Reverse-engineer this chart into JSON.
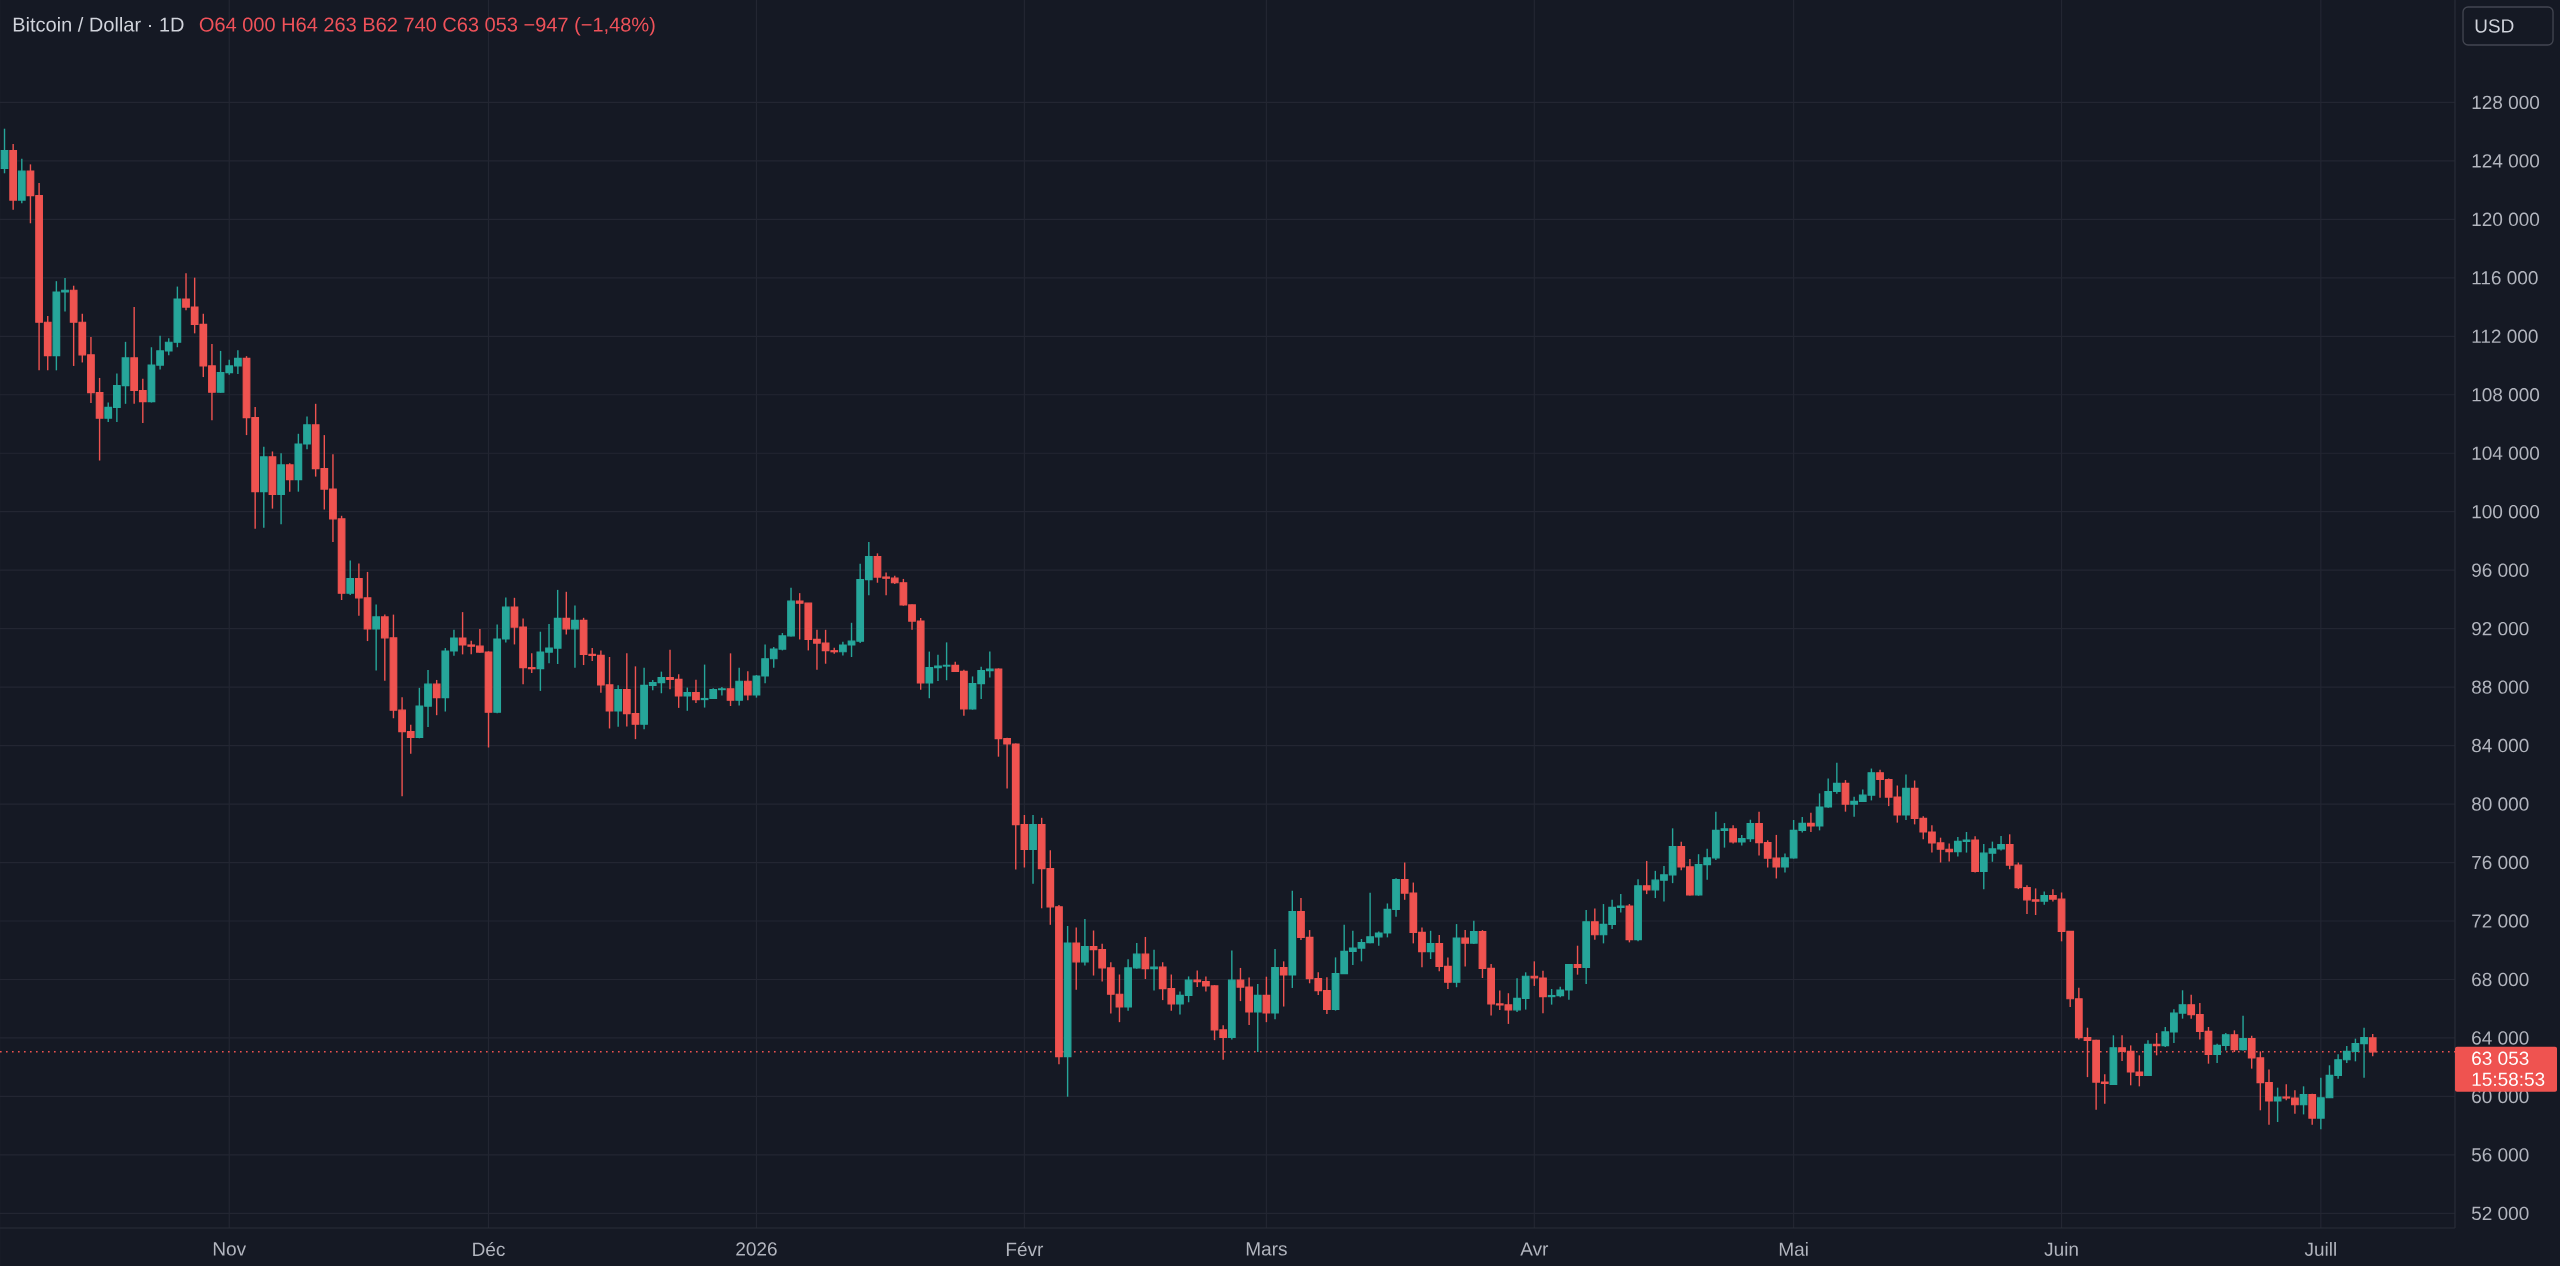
{
  "chart_data": {
    "type": "candlestick",
    "title": "Bitcoin / Dollar · 1D",
    "subtitle": "O64 000 H64 263 B62 740 C63 053 −947 (−1,48%)",
    "annotations": [
      "USD",
      "15:58:53"
    ],
    "x": [
      "2025-10-06",
      "2025-10-07",
      "2025-10-08",
      "2025-10-09",
      "2025-10-10",
      "2025-10-11",
      "2025-10-12",
      "2025-10-13",
      "2025-10-14",
      "2025-10-15",
      "2025-10-16",
      "2025-10-17",
      "2025-10-18",
      "2025-10-19",
      "2025-10-20",
      "2025-10-21",
      "2025-10-22",
      "2025-10-23",
      "2025-10-24",
      "2025-10-25",
      "2025-10-26",
      "2025-10-27",
      "2025-10-28",
      "2025-10-29",
      "2025-10-30",
      "2025-10-31",
      "2025-11-01",
      "2025-11-02",
      "2025-11-03",
      "2025-11-04",
      "2025-11-05",
      "2025-11-06",
      "2025-11-07",
      "2025-11-08",
      "2025-11-09",
      "2025-11-10",
      "2025-11-11",
      "2025-11-12",
      "2025-11-13",
      "2025-11-14",
      "2025-11-15",
      "2025-11-16",
      "2025-11-17",
      "2025-11-18",
      "2025-11-19",
      "2025-11-20",
      "2025-11-21",
      "2025-11-22",
      "2025-11-23",
      "2025-11-24",
      "2025-11-25",
      "2025-11-26",
      "2025-11-27",
      "2025-11-28",
      "2025-11-29",
      "2025-11-30",
      "2025-12-01",
      "2025-12-02",
      "2025-12-03",
      "2025-12-04",
      "2025-12-05",
      "2025-12-06",
      "2025-12-07",
      "2025-12-08",
      "2025-12-09",
      "2025-12-10",
      "2025-12-11",
      "2025-12-12",
      "2025-12-13",
      "2025-12-14",
      "2025-12-15",
      "2025-12-16",
      "2025-12-17",
      "2025-12-18",
      "2025-12-19",
      "2025-12-20",
      "2025-12-21",
      "2025-12-22",
      "2025-12-23",
      "2025-12-24",
      "2025-12-25",
      "2025-12-26",
      "2025-12-27",
      "2025-12-28",
      "2025-12-29",
      "2025-12-30",
      "2025-12-31",
      "2026-01-01",
      "2026-01-02",
      "2026-01-03",
      "2026-01-04",
      "2026-01-05",
      "2026-01-06",
      "2026-01-07",
      "2026-01-08",
      "2026-01-09",
      "2026-01-10",
      "2026-01-11",
      "2026-01-12",
      "2026-01-13",
      "2026-01-14",
      "2026-01-15",
      "2026-01-16",
      "2026-01-17",
      "2026-01-18",
      "2026-01-19",
      "2026-01-20",
      "2026-01-21",
      "2026-01-22",
      "2026-01-23",
      "2026-01-24",
      "2026-01-25",
      "2026-01-26",
      "2026-01-27",
      "2026-01-28",
      "2026-01-29",
      "2026-01-30",
      "2026-01-31",
      "2026-02-01",
      "2026-02-02",
      "2026-02-03",
      "2026-02-04",
      "2026-02-05",
      "2026-02-06",
      "2026-02-07",
      "2026-02-08",
      "2026-02-09",
      "2026-02-10",
      "2026-02-11",
      "2026-02-12",
      "2026-02-13",
      "2026-02-14",
      "2026-02-15",
      "2026-02-16",
      "2026-02-17",
      "2026-02-18",
      "2026-02-19",
      "2026-02-20",
      "2026-02-21",
      "2026-02-22",
      "2026-02-23",
      "2026-02-24",
      "2026-02-25",
      "2026-02-26",
      "2026-02-27",
      "2026-02-28",
      "2026-03-01",
      "2026-03-02",
      "2026-03-03",
      "2026-03-04",
      "2026-03-05",
      "2026-03-06",
      "2026-03-07",
      "2026-03-08",
      "2026-03-09",
      "2026-03-10",
      "2026-03-11",
      "2026-03-12",
      "2026-03-13",
      "2026-03-14",
      "2026-03-15",
      "2026-03-16",
      "2026-03-17",
      "2026-03-18",
      "2026-03-19",
      "2026-03-20",
      "2026-03-21",
      "2026-03-22",
      "2026-03-23",
      "2026-03-24",
      "2026-03-25",
      "2026-03-26",
      "2026-03-27",
      "2026-03-28",
      "2026-03-29",
      "2026-03-30",
      "2026-03-31",
      "2026-04-01",
      "2026-04-02",
      "2026-04-03",
      "2026-04-04",
      "2026-04-05",
      "2026-04-06",
      "2026-04-07",
      "2026-04-08",
      "2026-04-09",
      "2026-04-10",
      "2026-04-11",
      "2026-04-12",
      "2026-04-13",
      "2026-04-14",
      "2026-04-15",
      "2026-04-16",
      "2026-04-17",
      "2026-04-18",
      "2026-04-19",
      "2026-04-20",
      "2026-04-21",
      "2026-04-22",
      "2026-04-23",
      "2026-04-24",
      "2026-04-25",
      "2026-04-26",
      "2026-04-27",
      "2026-04-28",
      "2026-04-29",
      "2026-04-30",
      "2026-05-01",
      "2026-05-02",
      "2026-05-03",
      "2026-05-04",
      "2026-05-05",
      "2026-05-06",
      "2026-05-07",
      "2026-05-08",
      "2026-05-09",
      "2026-05-10",
      "2026-05-11",
      "2026-05-12",
      "2026-05-13",
      "2026-05-14",
      "2026-05-15",
      "2026-05-16",
      "2026-05-17",
      "2026-05-18",
      "2026-05-19",
      "2026-05-20",
      "2026-05-21",
      "2026-05-22",
      "2026-05-23",
      "2026-05-24",
      "2026-05-25",
      "2026-05-26",
      "2026-05-27",
      "2026-05-28",
      "2026-05-29",
      "2026-05-30",
      "2026-05-31",
      "2026-06-01",
      "2026-06-02",
      "2026-06-03",
      "2026-06-04",
      "2026-06-05",
      "2026-06-06",
      "2026-06-07",
      "2026-06-08",
      "2026-06-09",
      "2026-06-10",
      "2026-06-11",
      "2026-06-12",
      "2026-06-13",
      "2026-06-14",
      "2026-06-15",
      "2026-06-16",
      "2026-06-17",
      "2026-06-18",
      "2026-06-19",
      "2026-06-20",
      "2026-06-21",
      "2026-06-22",
      "2026-06-23",
      "2026-06-24",
      "2026-06-25",
      "2026-06-26",
      "2026-06-27",
      "2026-06-28",
      "2026-06-29",
      "2026-06-30",
      "2026-07-01",
      "2026-07-02",
      "2026-07-03",
      "2026-07-04",
      "2026-07-05",
      "2026-07-06",
      "2026-07-07"
    ],
    "ohlc": [
      [
        123480,
        126200,
        123150,
        124700
      ],
      [
        124700,
        125160,
        120650,
        121320
      ],
      [
        121320,
        124150,
        121100,
        123300
      ],
      [
        123300,
        123760,
        119730,
        121620
      ],
      [
        121620,
        122480,
        109670,
        112960
      ],
      [
        112960,
        113390,
        109670,
        110670
      ],
      [
        110670,
        115770,
        109670,
        115030
      ],
      [
        115030,
        115980,
        113690,
        115150
      ],
      [
        115150,
        115460,
        109970,
        112960
      ],
      [
        112960,
        113540,
        110210,
        110730
      ],
      [
        110730,
        111950,
        107440,
        108140
      ],
      [
        108140,
        109150,
        103500,
        106400
      ],
      [
        106400,
        107470,
        106130,
        107130
      ],
      [
        107130,
        109450,
        106130,
        108630
      ],
      [
        108630,
        111620,
        107380,
        110520
      ],
      [
        110520,
        114000,
        107380,
        108290
      ],
      [
        108290,
        109090,
        106070,
        107530
      ],
      [
        107530,
        111250,
        107470,
        110030
      ],
      [
        110030,
        112040,
        109730,
        111000
      ],
      [
        111000,
        111860,
        110700,
        111590
      ],
      [
        111590,
        115400,
        111250,
        114550
      ],
      [
        114550,
        116320,
        113780,
        114000
      ],
      [
        114000,
        116010,
        112200,
        112810
      ],
      [
        112810,
        113540,
        109210,
        109970
      ],
      [
        109970,
        111470,
        106250,
        108170
      ],
      [
        108170,
        111000,
        108140,
        109510
      ],
      [
        109510,
        110400,
        109360,
        109970
      ],
      [
        109970,
        111040,
        109420,
        110490
      ],
      [
        110490,
        110640,
        105240,
        106430
      ],
      [
        106430,
        107160,
        98830,
        101370
      ],
      [
        101370,
        104450,
        98900,
        103750
      ],
      [
        103750,
        104120,
        100210,
        101190
      ],
      [
        101190,
        103990,
        99140,
        103200
      ],
      [
        103200,
        103320,
        101370,
        102190
      ],
      [
        102190,
        105330,
        101370,
        104630
      ],
      [
        104630,
        106520,
        104270,
        105940
      ],
      [
        105940,
        107380,
        102400,
        102950
      ],
      [
        102950,
        105240,
        100150,
        101550
      ],
      [
        101550,
        103930,
        97920,
        99510
      ],
      [
        99510,
        99720,
        93960,
        94420
      ],
      [
        94420,
        96670,
        94300,
        95420
      ],
      [
        95420,
        96460,
        92890,
        94110
      ],
      [
        94110,
        95880,
        91150,
        91980
      ],
      [
        91980,
        93650,
        89140,
        92800
      ],
      [
        92800,
        92960,
        88440,
        91370
      ],
      [
        91370,
        92960,
        85870,
        86420
      ],
      [
        86420,
        87300,
        80540,
        84960
      ],
      [
        84960,
        85420,
        83440,
        84560
      ],
      [
        84560,
        87950,
        84500,
        86700
      ],
      [
        86700,
        89170,
        85270,
        88200
      ],
      [
        88200,
        88490,
        86080,
        87280
      ],
      [
        87280,
        90670,
        86330,
        90470
      ],
      [
        90470,
        91920,
        90150,
        91360
      ],
      [
        91360,
        93130,
        90240,
        90880
      ],
      [
        90880,
        91170,
        90240,
        90800
      ],
      [
        90800,
        91970,
        90350,
        90400
      ],
      [
        90400,
        90450,
        83870,
        86280
      ],
      [
        86280,
        92290,
        86210,
        91290
      ],
      [
        91290,
        94130,
        91060,
        93470
      ],
      [
        93470,
        94110,
        90920,
        92110
      ],
      [
        92110,
        92700,
        88190,
        89330
      ],
      [
        89330,
        90310,
        88970,
        89260
      ],
      [
        89260,
        91790,
        87740,
        90400
      ],
      [
        90400,
        92310,
        89630,
        90670
      ],
      [
        90670,
        94650,
        89580,
        92700
      ],
      [
        92700,
        94520,
        91600,
        91990
      ],
      [
        91990,
        93580,
        89330,
        92560
      ],
      [
        92560,
        92740,
        89510,
        90240
      ],
      [
        90240,
        90670,
        89790,
        90170
      ],
      [
        90170,
        90510,
        87620,
        88150
      ],
      [
        88150,
        90060,
        85170,
        86370
      ],
      [
        86370,
        88120,
        85290,
        87830
      ],
      [
        87830,
        90310,
        85300,
        86190
      ],
      [
        86190,
        89420,
        84440,
        85460
      ],
      [
        85460,
        89330,
        85120,
        88120
      ],
      [
        88120,
        88490,
        87780,
        88310
      ],
      [
        88310,
        89060,
        87580,
        88650
      ],
      [
        88650,
        90560,
        87850,
        88530
      ],
      [
        88530,
        88880,
        86580,
        87400
      ],
      [
        87400,
        87970,
        86380,
        87620
      ],
      [
        87620,
        88510,
        86920,
        87150
      ],
      [
        87150,
        89540,
        86600,
        87220
      ],
      [
        87220,
        87920,
        87210,
        87830
      ],
      [
        87830,
        88010,
        87420,
        87880
      ],
      [
        87880,
        90310,
        86710,
        87100
      ],
      [
        87100,
        89330,
        86740,
        88400
      ],
      [
        88400,
        89080,
        87100,
        87470
      ],
      [
        87470,
        88830,
        87280,
        88760
      ],
      [
        88760,
        90920,
        88260,
        89940
      ],
      [
        89940,
        90740,
        89330,
        90600
      ],
      [
        90600,
        91700,
        90510,
        91510
      ],
      [
        91510,
        94790,
        91470,
        93880
      ],
      [
        93880,
        94430,
        91260,
        93740
      ],
      [
        93740,
        93750,
        90510,
        91260
      ],
      [
        91260,
        91920,
        89190,
        91010
      ],
      [
        91010,
        91920,
        89600,
        90490
      ],
      [
        90490,
        90700,
        90290,
        90420
      ],
      [
        90420,
        91110,
        90170,
        90880
      ],
      [
        90880,
        92400,
        90060,
        91140
      ],
      [
        91140,
        96440,
        91010,
        95350
      ],
      [
        95350,
        97930,
        94280,
        96920
      ],
      [
        96920,
        97150,
        95140,
        95530
      ],
      [
        95530,
        95840,
        94280,
        95450
      ],
      [
        95450,
        95610,
        95060,
        95140
      ],
      [
        95140,
        95400,
        93570,
        93620
      ],
      [
        93620,
        93650,
        91920,
        92520
      ],
      [
        92520,
        92730,
        87820,
        88290
      ],
      [
        88290,
        90430,
        87240,
        89330
      ],
      [
        89330,
        90220,
        88420,
        89440
      ],
      [
        89440,
        91060,
        88470,
        89490
      ],
      [
        89490,
        89730,
        89050,
        89070
      ],
      [
        89070,
        89180,
        86040,
        86510
      ],
      [
        86510,
        88730,
        86460,
        88240
      ],
      [
        88240,
        89390,
        87190,
        89130
      ],
      [
        89130,
        90430,
        88660,
        89230
      ],
      [
        89230,
        89280,
        83240,
        84470
      ],
      [
        84470,
        84530,
        81070,
        84110
      ],
      [
        84110,
        84150,
        75530,
        78590
      ],
      [
        78590,
        79250,
        75660,
        76890
      ],
      [
        76890,
        79250,
        74540,
        78590
      ],
      [
        78590,
        79060,
        72870,
        75590
      ],
      [
        75590,
        76840,
        71740,
        72970
      ],
      [
        72970,
        73100,
        62200,
        62720
      ],
      [
        62720,
        71660,
        59980,
        70490
      ],
      [
        70490,
        71560,
        67300,
        69210
      ],
      [
        69210,
        72130,
        68950,
        70250
      ],
      [
        70250,
        71350,
        68270,
        70040
      ],
      [
        70040,
        70440,
        67870,
        68790
      ],
      [
        68790,
        69180,
        65680,
        66990
      ],
      [
        66990,
        68340,
        65080,
        66120
      ],
      [
        66120,
        69390,
        65860,
        68790
      ],
      [
        68790,
        70490,
        68740,
        69730
      ],
      [
        69730,
        70910,
        68030,
        68740
      ],
      [
        68740,
        70040,
        67250,
        68840
      ],
      [
        68840,
        69180,
        66590,
        67380
      ],
      [
        67380,
        68340,
        65860,
        66330
      ],
      [
        66330,
        67170,
        65600,
        66910
      ],
      [
        66910,
        68210,
        66440,
        67950
      ],
      [
        67950,
        68610,
        67480,
        67850
      ],
      [
        67850,
        68210,
        67170,
        67560
      ],
      [
        67560,
        67610,
        63850,
        64550
      ],
      [
        64550,
        64870,
        62510,
        64030
      ],
      [
        64030,
        69990,
        63900,
        67950
      ],
      [
        67950,
        68790,
        66520,
        67480
      ],
      [
        67480,
        68140,
        64890,
        65780
      ],
      [
        65780,
        67690,
        63040,
        66910
      ],
      [
        66910,
        68190,
        65080,
        65710
      ],
      [
        65710,
        70080,
        65280,
        68810
      ],
      [
        68810,
        69240,
        66150,
        68310
      ],
      [
        68310,
        74070,
        67420,
        72650
      ],
      [
        72650,
        73570,
        70700,
        70880
      ],
      [
        70880,
        71380,
        67740,
        68060
      ],
      [
        68060,
        68490,
        66940,
        67240
      ],
      [
        67240,
        68150,
        65640,
        65960
      ],
      [
        65960,
        69510,
        65870,
        68400
      ],
      [
        68400,
        71740,
        68400,
        69920
      ],
      [
        69920,
        71330,
        68990,
        70150
      ],
      [
        70150,
        70770,
        69240,
        70520
      ],
      [
        70520,
        73930,
        70470,
        70920
      ],
      [
        70920,
        71290,
        70310,
        71180
      ],
      [
        71180,
        73200,
        70880,
        72790
      ],
      [
        72790,
        74930,
        72290,
        74840
      ],
      [
        74840,
        76000,
        73450,
        73910
      ],
      [
        73910,
        74630,
        70470,
        71220
      ],
      [
        71220,
        71560,
        68830,
        69900
      ],
      [
        69900,
        71330,
        69400,
        70450
      ],
      [
        70450,
        71040,
        68560,
        68900
      ],
      [
        68900,
        69510,
        67350,
        67810
      ],
      [
        67810,
        71790,
        67470,
        70830
      ],
      [
        70830,
        71380,
        68880,
        70490
      ],
      [
        70490,
        72020,
        70420,
        71270
      ],
      [
        71270,
        71380,
        68100,
        68760
      ],
      [
        68760,
        69060,
        65530,
        66330
      ],
      [
        66330,
        67240,
        65920,
        66260
      ],
      [
        66260,
        67060,
        64960,
        65920
      ],
      [
        65920,
        68080,
        65780,
        66710
      ],
      [
        66710,
        68490,
        65940,
        68220
      ],
      [
        68220,
        69240,
        67560,
        68100
      ],
      [
        68100,
        68600,
        65690,
        66830
      ],
      [
        66830,
        67350,
        66280,
        66900
      ],
      [
        66900,
        67510,
        66780,
        67280
      ],
      [
        67280,
        69060,
        66620,
        69010
      ],
      [
        69010,
        70310,
        68330,
        68830
      ],
      [
        68830,
        72750,
        67690,
        71950
      ],
      [
        71950,
        72860,
        70720,
        71060
      ],
      [
        71060,
        73160,
        70470,
        71770
      ],
      [
        71770,
        73450,
        71450,
        72930
      ],
      [
        72930,
        73840,
        72590,
        73020
      ],
      [
        73020,
        73160,
        70540,
        70720
      ],
      [
        70720,
        74860,
        70610,
        74410
      ],
      [
        74410,
        76110,
        73840,
        74130
      ],
      [
        74130,
        75430,
        73570,
        74790
      ],
      [
        74790,
        75770,
        73340,
        75160
      ],
      [
        75160,
        78340,
        74590,
        77090
      ],
      [
        77090,
        77430,
        75480,
        75700
      ],
      [
        75700,
        76250,
        73750,
        73790
      ],
      [
        73790,
        76570,
        73730,
        75860
      ],
      [
        75860,
        76950,
        74820,
        76320
      ],
      [
        76320,
        79480,
        76180,
        78200
      ],
      [
        78200,
        78700,
        77020,
        78300
      ],
      [
        78300,
        78550,
        77300,
        77410
      ],
      [
        77410,
        77890,
        77160,
        77640
      ],
      [
        77640,
        78930,
        77410,
        78660
      ],
      [
        78660,
        79480,
        76480,
        77360
      ],
      [
        77360,
        77520,
        75660,
        76300
      ],
      [
        76300,
        77890,
        74910,
        75700
      ],
      [
        75700,
        76610,
        75320,
        76320
      ],
      [
        76320,
        78910,
        76270,
        78200
      ],
      [
        78200,
        79110,
        78050,
        78680
      ],
      [
        78680,
        79410,
        78090,
        78500
      ],
      [
        78500,
        80730,
        78200,
        79800
      ],
      [
        79800,
        81750,
        79750,
        80860
      ],
      [
        80860,
        82820,
        80700,
        81410
      ],
      [
        81410,
        81640,
        79480,
        80000
      ],
      [
        80000,
        80500,
        79140,
        80180
      ],
      [
        80180,
        81000,
        80140,
        80610
      ],
      [
        80610,
        82430,
        80250,
        82140
      ],
      [
        82140,
        82340,
        80430,
        81680
      ],
      [
        81680,
        81750,
        79860,
        80480
      ],
      [
        80480,
        81270,
        78730,
        79250
      ],
      [
        79250,
        82020,
        78910,
        81070
      ],
      [
        81070,
        81610,
        78610,
        79020
      ],
      [
        79020,
        79160,
        77590,
        78090
      ],
      [
        78090,
        78550,
        76680,
        77340
      ],
      [
        77340,
        77700,
        76000,
        76910
      ],
      [
        76910,
        77300,
        76070,
        76750
      ],
      [
        76750,
        77750,
        76410,
        77450
      ],
      [
        77450,
        78090,
        76680,
        77540
      ],
      [
        77540,
        77800,
        75320,
        75390
      ],
      [
        75390,
        77270,
        74180,
        76640
      ],
      [
        76640,
        77430,
        76050,
        76930
      ],
      [
        76930,
        77820,
        76820,
        77230
      ],
      [
        77230,
        77930,
        75540,
        75820
      ],
      [
        75820,
        76000,
        74180,
        74290
      ],
      [
        74290,
        74450,
        72480,
        73450
      ],
      [
        73450,
        74230,
        72410,
        73360
      ],
      [
        73360,
        74020,
        73110,
        73730
      ],
      [
        73730,
        74180,
        73340,
        73500
      ],
      [
        73500,
        73950,
        70610,
        71290
      ],
      [
        71290,
        71300,
        66110,
        66680
      ],
      [
        66680,
        67440,
        63900,
        64020
      ],
      [
        64020,
        64700,
        61320,
        63830
      ],
      [
        63830,
        63880,
        59090,
        60980
      ],
      [
        60980,
        61510,
        59500,
        60890
      ],
      [
        60830,
        64180,
        60830,
        63330
      ],
      [
        63330,
        64180,
        62420,
        63080
      ],
      [
        63080,
        63490,
        60760,
        61670
      ],
      [
        61670,
        62810,
        60690,
        61440
      ],
      [
        61440,
        63840,
        61440,
        63560
      ],
      [
        63560,
        64340,
        62810,
        63470
      ],
      [
        63470,
        64750,
        63380,
        64410
      ],
      [
        64410,
        65960,
        63650,
        65700
      ],
      [
        65700,
        67260,
        65320,
        66270
      ],
      [
        66270,
        66960,
        65320,
        65590
      ],
      [
        65590,
        66390,
        63900,
        64450
      ],
      [
        64450,
        64750,
        62240,
        62880
      ],
      [
        62880,
        63610,
        62280,
        63490
      ],
      [
        63490,
        64340,
        63150,
        64220
      ],
      [
        64220,
        64520,
        63040,
        63200
      ],
      [
        63200,
        65520,
        63150,
        63950
      ],
      [
        63950,
        64150,
        61900,
        62630
      ],
      [
        62630,
        63080,
        59050,
        60940
      ],
      [
        60940,
        61850,
        58070,
        59690
      ],
      [
        59690,
        60600,
        58250,
        59960
      ],
      [
        59960,
        60830,
        59730,
        59890
      ],
      [
        59890,
        60420,
        58820,
        59430
      ],
      [
        59430,
        60690,
        58770,
        60120
      ],
      [
        60120,
        60190,
        58070,
        58520
      ],
      [
        58520,
        61280,
        57750,
        59910
      ],
      [
        59910,
        62130,
        59910,
        61440
      ],
      [
        61440,
        62880,
        61210,
        62510
      ],
      [
        62510,
        63450,
        62280,
        63080
      ],
      [
        63080,
        63950,
        62400,
        63610
      ],
      [
        63610,
        64700,
        61280,
        64020
      ],
      [
        64000,
        64263,
        62740,
        63053
      ]
    ],
    "colors": [
      "#26a69a",
      "#ef5350",
      "#26a69a",
      "#ef5350",
      "#ef5350",
      "#ef5350",
      "#26a69a",
      "#26a69a",
      "#ef5350",
      "#ef5350",
      "#ef5350",
      "#ef5350",
      "#26a69a",
      "#26a69a",
      "#26a69a",
      "#ef5350",
      "#ef5350",
      "#26a69a",
      "#26a69a",
      "#26a69a",
      "#26a69a",
      "#ef5350",
      "#ef5350",
      "#ef5350",
      "#ef5350",
      "#26a69a",
      "#26a69a",
      "#26a69a",
      "#ef5350",
      "#ef5350",
      "#26a69a",
      "#ef5350",
      "#26a69a",
      "#ef5350",
      "#26a69a",
      "#26a69a",
      "#ef5350",
      "#ef5350",
      "#ef5350",
      "#ef5350",
      "#26a69a",
      "#ef5350",
      "#ef5350",
      "#26a69a",
      "#ef5350",
      "#ef5350",
      "#ef5350",
      "#ef5350",
      "#26a69a",
      "#26a69a",
      "#ef5350",
      "#26a69a",
      "#26a69a",
      "#ef5350",
      "#ef5350",
      "#ef5350",
      "#ef5350",
      "#26a69a",
      "#26a69a",
      "#ef5350",
      "#ef5350",
      "#ef5350",
      "#26a69a",
      "#26a69a",
      "#26a69a",
      "#ef5350",
      "#26a69a",
      "#ef5350",
      "#ef5350",
      "#ef5350",
      "#ef5350",
      "#26a69a",
      "#ef5350",
      "#ef5350",
      "#26a69a",
      "#26a69a",
      "#26a69a",
      "#ef5350",
      "#ef5350",
      "#26a69a",
      "#ef5350",
      "#26a69a",
      "#26a69a",
      "#26a69a",
      "#ef5350",
      "#26a69a",
      "#ef5350",
      "#26a69a",
      "#26a69a",
      "#26a69a",
      "#26a69a",
      "#26a69a",
      "#ef5350",
      "#ef5350",
      "#ef5350",
      "#ef5350",
      "#ef5350",
      "#26a69a",
      "#26a69a",
      "#26a69a",
      "#26a69a",
      "#ef5350",
      "#ef5350",
      "#ef5350",
      "#ef5350",
      "#ef5350",
      "#ef5350",
      "#26a69a",
      "#26a69a",
      "#26a69a",
      "#ef5350",
      "#ef5350",
      "#26a69a",
      "#26a69a",
      "#26a69a",
      "#ef5350",
      "#ef5350",
      "#ef5350",
      "#ef5350",
      "#26a69a",
      "#ef5350",
      "#ef5350",
      "#ef5350",
      "#26a69a",
      "#ef5350",
      "#26a69a",
      "#ef5350",
      "#ef5350",
      "#ef5350",
      "#ef5350",
      "#26a69a",
      "#26a69a",
      "#ef5350",
      "#26a69a",
      "#ef5350",
      "#ef5350",
      "#26a69a",
      "#26a69a",
      "#ef5350",
      "#ef5350",
      "#ef5350",
      "#ef5350",
      "#26a69a",
      "#ef5350",
      "#ef5350",
      "#26a69a",
      "#ef5350",
      "#26a69a",
      "#ef5350",
      "#26a69a",
      "#ef5350",
      "#ef5350",
      "#ef5350",
      "#ef5350",
      "#26a69a",
      "#26a69a",
      "#26a69a",
      "#26a69a",
      "#26a69a",
      "#26a69a",
      "#26a69a",
      "#26a69a",
      "#ef5350",
      "#ef5350",
      "#ef5350",
      "#26a69a",
      "#ef5350",
      "#ef5350",
      "#26a69a",
      "#ef5350",
      "#26a69a",
      "#ef5350",
      "#ef5350",
      "#ef5350",
      "#ef5350",
      "#26a69a",
      "#26a69a",
      "#ef5350",
      "#ef5350",
      "#26a69a",
      "#26a69a",
      "#26a69a",
      "#ef5350",
      "#26a69a",
      "#ef5350",
      "#26a69a",
      "#26a69a",
      "#26a69a",
      "#ef5350",
      "#26a69a",
      "#ef5350",
      "#26a69a",
      "#26a69a",
      "#26a69a",
      "#ef5350",
      "#ef5350",
      "#26a69a",
      "#26a69a",
      "#26a69a",
      "#26a69a",
      "#ef5350",
      "#26a69a",
      "#26a69a",
      "#ef5350",
      "#ef5350",
      "#ef5350",
      "#26a69a",
      "#26a69a",
      "#26a69a",
      "#ef5350",
      "#26a69a",
      "#26a69a",
      "#26a69a",
      "#ef5350",
      "#26a69a",
      "#26a69a",
      "#26a69a",
      "#ef5350",
      "#ef5350",
      "#ef5350",
      "#26a69a",
      "#ef5350",
      "#ef5350",
      "#ef5350",
      "#ef5350",
      "#ef5350",
      "#26a69a",
      "#26a69a",
      "#ef5350",
      "#26a69a",
      "#26a69a",
      "#26a69a",
      "#ef5350",
      "#ef5350",
      "#ef5350",
      "#ef5350",
      "#26a69a",
      "#ef5350",
      "#ef5350",
      "#ef5350",
      "#ef5350",
      "#ef5350",
      "#ef5350",
      "#ef5350",
      "#26a69a",
      "#ef5350",
      "#ef5350",
      "#ef5350",
      "#26a69a",
      "#ef5350",
      "#26a69a",
      "#26a69a",
      "#26a69a",
      "#ef5350",
      "#ef5350",
      "#ef5350",
      "#26a69a",
      "#26a69a",
      "#ef5350",
      "#26a69a",
      "#ef5350",
      "#ef5350",
      "#ef5350",
      "#26a69a",
      "#ef5350",
      "#ef5350",
      "#26a69a",
      "#ef5350",
      "#26a69a",
      "#26a69a",
      "#26a69a",
      "#26a69a",
      "#26a69a",
      "#26a69a",
      "#ef5350"
    ],
    "xlim": [
      "2025-10-05T11:30",
      "2026-07-16T12:30"
    ],
    "xticks": [
      {
        "value": "2025-11-01",
        "label": "Nov"
      },
      {
        "value": "2025-12-01",
        "label": "Déc"
      },
      {
        "value": "2026-01-01",
        "label": "2026"
      },
      {
        "value": "2026-02-01",
        "label": "Févr"
      },
      {
        "value": "2026-03-01",
        "label": "Mars"
      },
      {
        "value": "2026-04-01",
        "label": "Avr"
      },
      {
        "value": "2026-05-01",
        "label": "Mai"
      },
      {
        "value": "2026-06-01",
        "label": "Juin"
      },
      {
        "value": "2026-07-01",
        "label": "Juill"
      }
    ],
    "ylim": [
      51000,
      135000
    ],
    "yticks": [
      {
        "value": 52000,
        "label": "52 000"
      },
      {
        "value": 56000,
        "label": "56 000"
      },
      {
        "value": 60000,
        "label": "60 000"
      },
      {
        "value": 64000,
        "label": "64 000"
      },
      {
        "value": 68000,
        "label": "68 000"
      },
      {
        "value": 72000,
        "label": "72 000"
      },
      {
        "value": 76000,
        "label": "76 000"
      },
      {
        "value": 80000,
        "label": "80 000"
      },
      {
        "value": 84000,
        "label": "84 000"
      },
      {
        "value": 88000,
        "label": "88 000"
      },
      {
        "value": 92000,
        "label": "92 000"
      },
      {
        "value": 96000,
        "label": "96 000"
      },
      {
        "value": 100000,
        "label": "100 000"
      },
      {
        "value": 104000,
        "label": "104 000"
      },
      {
        "value": 108000,
        "label": "108 000"
      },
      {
        "value": 112000,
        "label": "112 000"
      },
      {
        "value": 116000,
        "label": "116 000"
      },
      {
        "value": 120000,
        "label": "120 000"
      },
      {
        "value": 124000,
        "label": "124 000"
      },
      {
        "value": 128000,
        "label": "128 000"
      }
    ],
    "grid": true,
    "ref_lines": [
      {
        "axis": "y",
        "value": 63053,
        "label": "63 053",
        "color": "#ef5350",
        "line_style": "dotted"
      }
    ]
  }
}
